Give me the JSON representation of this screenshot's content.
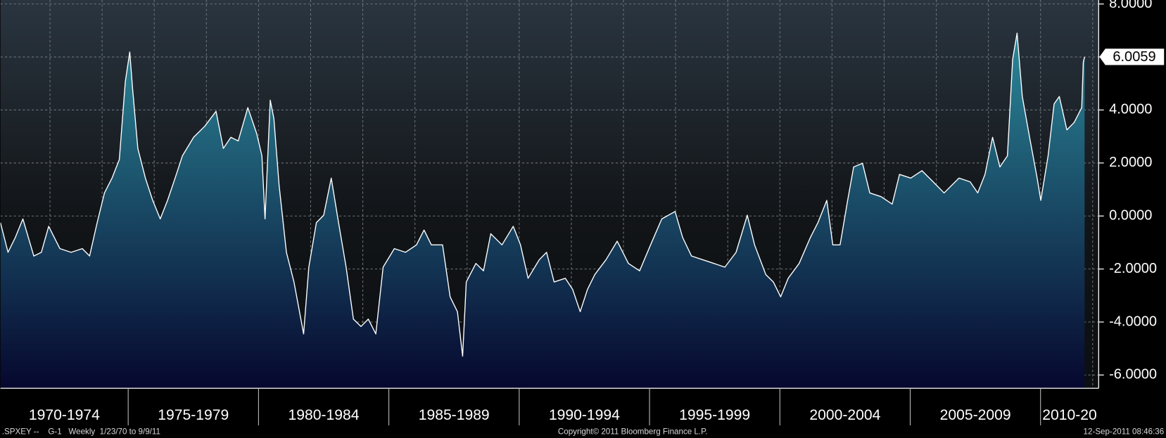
{
  "chart_data": {
    "type": "area",
    "footer_left": ".SPXEY --    G-1   Weekly  1/23/70 to 9/9/11",
    "footer_center": "Copyright© 2011 Bloomberg Finance L.P.",
    "footer_right": "12-Sep-2011 08:46:36",
    "line_color": "#ffffff",
    "fill_top_color": "#2f95a3",
    "fill_bottom_color": "#06072e",
    "grid": true,
    "xlim": [
      1970.1,
      2012.23
    ],
    "ylim": [
      -6.5,
      8.15
    ],
    "xticks": [
      {
        "value": 1970,
        "label": "1970-1974"
      },
      {
        "value": 1975,
        "label": "1975-1979"
      },
      {
        "value": 1980,
        "label": "1980-1984"
      },
      {
        "value": 1985,
        "label": "1985-1989"
      },
      {
        "value": 1990,
        "label": "1990-1994"
      },
      {
        "value": 1995,
        "label": "1995-1999"
      },
      {
        "value": 2000,
        "label": "2000-2004"
      },
      {
        "value": 2005,
        "label": "2005-2009"
      },
      {
        "value": 2010,
        "label": "2010-20"
      }
    ],
    "xgrid": [
      1972,
      1974,
      1976,
      1978,
      1980,
      1982,
      1984,
      1986,
      1988,
      1990,
      1992,
      1994,
      1996,
      1998,
      2000,
      2002,
      2004,
      2006,
      2008,
      2010,
      2012
    ],
    "yticks": [
      {
        "value": 8,
        "label": "8.0000"
      },
      {
        "value": 6,
        "label": "6.0000"
      },
      {
        "value": 4,
        "label": "4.0000"
      },
      {
        "value": 2,
        "label": "2.0000"
      },
      {
        "value": 0,
        "label": "0.0000"
      },
      {
        "value": -2,
        "label": "-2.0000"
      },
      {
        "value": -4,
        "label": "-4.0000"
      },
      {
        "value": -6,
        "label": "-6.0000"
      }
    ],
    "last_value": 6.0059,
    "x": [
      1970.1,
      1970.39,
      1970.67,
      1970.96,
      1971.38,
      1971.67,
      1971.95,
      1972.38,
      1972.81,
      1973.24,
      1973.52,
      1973.81,
      1974.09,
      1974.38,
      1974.66,
      1974.89,
      1975.06,
      1975.17,
      1975.37,
      1975.66,
      1975.94,
      1976.23,
      1976.51,
      1976.8,
      1977.08,
      1977.51,
      1977.94,
      1978.37,
      1978.65,
      1978.94,
      1979.22,
      1979.59,
      1979.93,
      1980.13,
      1980.25,
      1980.45,
      1980.59,
      1980.79,
      1981.07,
      1981.36,
      1981.73,
      1981.93,
      1982.22,
      1982.5,
      1982.79,
      1983.07,
      1983.36,
      1983.64,
      1983.93,
      1984.21,
      1984.5,
      1984.78,
      1985.21,
      1985.64,
      1986.06,
      1986.35,
      1986.63,
      1987.06,
      1987.35,
      1987.63,
      1987.83,
      1987.97,
      1988.34,
      1988.63,
      1988.91,
      1989.34,
      1989.77,
      1990.05,
      1990.34,
      1990.77,
      1991.05,
      1991.34,
      1991.77,
      1992.05,
      1992.34,
      1992.62,
      1992.9,
      1993.33,
      1993.76,
      1994.19,
      1994.62,
      1995.04,
      1995.47,
      1995.98,
      1996.27,
      1996.61,
      1997.04,
      1997.47,
      1997.89,
      1998.32,
      1998.75,
      1999.03,
      1999.46,
      1999.75,
      2000.03,
      2000.32,
      2000.74,
      2001.17,
      2001.46,
      2001.8,
      2002.03,
      2002.31,
      2002.6,
      2002.83,
      2003.17,
      2003.45,
      2003.88,
      2004.31,
      2004.59,
      2005.02,
      2005.45,
      2005.88,
      2006.3,
      2006.87,
      2007.3,
      2007.59,
      2007.87,
      2008.16,
      2008.44,
      2008.73,
      2008.93,
      2009.1,
      2009.3,
      2009.58,
      2009.87,
      2010.01,
      2010.29,
      2010.52,
      2010.72,
      2011.01,
      2011.29,
      2011.58,
      2011.64,
      2011.69
    ],
    "values": [
      -0.25,
      -1.37,
      -0.81,
      -0.11,
      -1.51,
      -1.37,
      -0.39,
      -1.23,
      -1.37,
      -1.23,
      -1.51,
      -0.25,
      0.87,
      1.43,
      2.13,
      5.07,
      6.19,
      4.79,
      2.55,
      1.43,
      0.59,
      -0.11,
      0.59,
      1.43,
      2.27,
      2.97,
      3.39,
      3.95,
      2.55,
      2.97,
      2.83,
      4.09,
      3.11,
      2.27,
      -0.11,
      4.37,
      3.67,
      1.15,
      -1.37,
      -2.49,
      -4.45,
      -1.93,
      -0.25,
      0.03,
      1.43,
      -0.25,
      -1.93,
      -3.89,
      -4.17,
      -3.89,
      -4.45,
      -1.93,
      -1.23,
      -1.37,
      -1.09,
      -0.53,
      -1.09,
      -1.09,
      -3.05,
      -3.61,
      -5.29,
      -2.49,
      -1.79,
      -2.07,
      -0.67,
      -1.09,
      -0.39,
      -1.09,
      -2.35,
      -1.65,
      -1.37,
      -2.49,
      -2.35,
      -2.77,
      -3.61,
      -2.77,
      -2.21,
      -1.65,
      -0.95,
      -1.79,
      -2.07,
      -1.09,
      -0.11,
      0.17,
      -0.81,
      -1.51,
      -1.65,
      -1.79,
      -1.93,
      -1.37,
      0.03,
      -1.09,
      -2.21,
      -2.49,
      -3.05,
      -2.35,
      -1.79,
      -0.81,
      -0.25,
      0.59,
      -1.09,
      -1.09,
      0.59,
      1.85,
      1.99,
      0.87,
      0.73,
      0.45,
      1.57,
      1.43,
      1.71,
      1.29,
      0.87,
      1.43,
      1.29,
      0.87,
      1.57,
      2.97,
      1.85,
      2.27,
      5.91,
      6.9,
      4.51,
      2.97,
      1.43,
      0.59,
      2.27,
      4.23,
      4.51,
      3.25,
      3.53,
      4.09,
      5.8,
      6.0059
    ]
  }
}
